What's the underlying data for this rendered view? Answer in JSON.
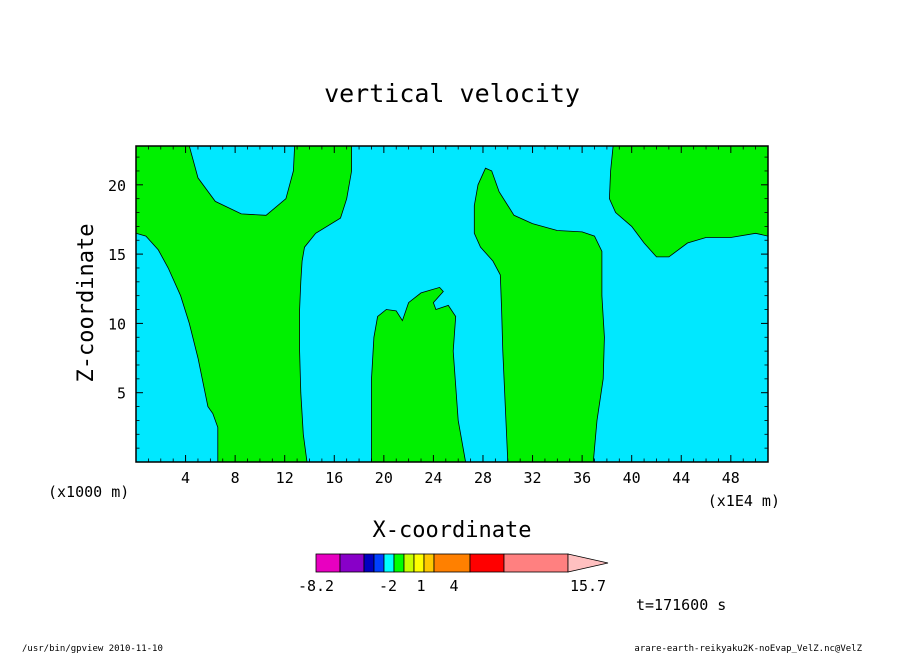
{
  "chart_data": {
    "type": "contour",
    "title": "vertical velocity",
    "xlabel": "X-coordinate",
    "ylabel": "Z-coordinate",
    "x_scale_label": "(x1000 m)",
    "x_unit_label": "(x1E4 m)",
    "xlim": [
      0,
      51
    ],
    "ylim": [
      0,
      22.8
    ],
    "x_ticks": [
      "4",
      "8",
      "12",
      "16",
      "20",
      "24",
      "28",
      "32",
      "36",
      "40",
      "44",
      "48"
    ],
    "y_ticks": [
      "5",
      "10",
      "15",
      "20"
    ],
    "x_tick_values": [
      4,
      8,
      12,
      16,
      20,
      24,
      28,
      32,
      36,
      40,
      44,
      48
    ],
    "y_tick_values": [
      5,
      10,
      15,
      20
    ],
    "background_color": "#00e8ff",
    "region_color": "#00f000",
    "regions": [
      {
        "name": "left-updraft",
        "points": [
          [
            0,
            16.5
          ],
          [
            0.8,
            16.3
          ],
          [
            1.8,
            15.3
          ],
          [
            2.6,
            14
          ],
          [
            3.6,
            12
          ],
          [
            4.3,
            10
          ],
          [
            5.0,
            7.5
          ],
          [
            5.8,
            4
          ],
          [
            6.2,
            3.5
          ],
          [
            6.6,
            2.5
          ],
          [
            6.6,
            0
          ],
          [
            13.8,
            0
          ],
          [
            13.5,
            2
          ],
          [
            13.3,
            5
          ],
          [
            13.2,
            8
          ],
          [
            13.2,
            11
          ],
          [
            13.3,
            13
          ],
          [
            13.4,
            14.5
          ],
          [
            13.6,
            15.5
          ],
          [
            14.5,
            16.5
          ],
          [
            16.5,
            17.6
          ],
          [
            17.0,
            19
          ],
          [
            17.4,
            21
          ],
          [
            17.4,
            22.8
          ],
          [
            12.8,
            22.8
          ],
          [
            12.7,
            21
          ],
          [
            12.1,
            19
          ],
          [
            10.5,
            17.8
          ],
          [
            8.5,
            17.9
          ],
          [
            6.4,
            18.8
          ],
          [
            5.0,
            20.5
          ],
          [
            4.3,
            22.8
          ],
          [
            0,
            22.8
          ]
        ]
      },
      {
        "name": "center-updraft",
        "points": [
          [
            19.0,
            0
          ],
          [
            19.0,
            6
          ],
          [
            19.2,
            9
          ],
          [
            19.5,
            10.5
          ],
          [
            20.2,
            11.0
          ],
          [
            21.0,
            10.9
          ],
          [
            21.5,
            10.2
          ],
          [
            22.0,
            11.5
          ],
          [
            23.0,
            12.2
          ],
          [
            24.5,
            12.6
          ],
          [
            24.8,
            12.3
          ],
          [
            24.0,
            11.5
          ],
          [
            24.2,
            11.0
          ],
          [
            25.2,
            11.3
          ],
          [
            25.8,
            10.5
          ],
          [
            25.6,
            8
          ],
          [
            26.0,
            3
          ],
          [
            26.6,
            0
          ]
        ]
      },
      {
        "name": "right-updraft",
        "points": [
          [
            30.0,
            0
          ],
          [
            29.8,
            4
          ],
          [
            29.6,
            8
          ],
          [
            29.5,
            11
          ],
          [
            29.4,
            13.5
          ],
          [
            28.8,
            14.5
          ],
          [
            27.8,
            15.5
          ],
          [
            27.3,
            16.5
          ],
          [
            27.3,
            18.5
          ],
          [
            27.6,
            20
          ],
          [
            28.2,
            21.2
          ],
          [
            28.7,
            21.0
          ],
          [
            29.3,
            19.5
          ],
          [
            30.5,
            17.8
          ],
          [
            32,
            17.2
          ],
          [
            34,
            16.7
          ],
          [
            36,
            16.6
          ],
          [
            37,
            16.3
          ],
          [
            37.6,
            15.2
          ],
          [
            37.6,
            12
          ],
          [
            37.8,
            9
          ],
          [
            37.7,
            6
          ],
          [
            37.2,
            3
          ],
          [
            36.9,
            0
          ]
        ]
      },
      {
        "name": "upper-right-region",
        "points": [
          [
            38.5,
            22.8
          ],
          [
            38.3,
            21
          ],
          [
            38.2,
            19
          ],
          [
            38.7,
            18
          ],
          [
            40,
            17.0
          ],
          [
            41,
            15.8
          ],
          [
            42,
            14.8
          ],
          [
            43,
            14.8
          ],
          [
            44.5,
            15.8
          ],
          [
            46,
            16.2
          ],
          [
            48,
            16.2
          ],
          [
            50,
            16.5
          ],
          [
            51,
            16.3
          ],
          [
            51,
            22.8
          ]
        ]
      }
    ],
    "colorbar": {
      "colors": [
        "#e800c0",
        "#8800c8",
        "#0000c0",
        "#0040ff",
        "#00ffff",
        "#00ff00",
        "#c8ff00",
        "#ffff00",
        "#ffc800",
        "#ff8000",
        "#ff0000",
        "#ff8080",
        "#ffc0c0"
      ],
      "labels": [
        "-8.2",
        "-2",
        "1",
        "4",
        "15.7"
      ]
    }
  },
  "annotation_time": "t=171600 s",
  "footer_left": "/usr/bin/gpview   2010-11-10",
  "footer_right": "arare-earth-reikyaku2K-noEvap_VelZ.nc@VelZ"
}
